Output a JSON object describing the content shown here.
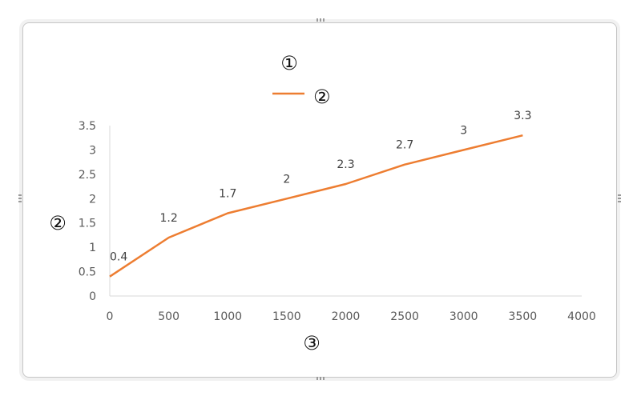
{
  "chart_data": {
    "type": "line",
    "title": "①",
    "xlabel": "③",
    "ylabel": "②",
    "legend": {
      "position": "top",
      "entries": [
        "②"
      ]
    },
    "series": [
      {
        "name": "②",
        "color": "#ED7D31",
        "x": [
          0,
          500,
          1000,
          1500,
          2000,
          2500,
          3000,
          3500
        ],
        "values": [
          0.4,
          1.2,
          1.7,
          2,
          2.3,
          2.7,
          3,
          3.3
        ],
        "data_labels": [
          "0.4",
          "1.2",
          "1.7",
          "2",
          "2.3",
          "2.7",
          "3",
          "3.3"
        ]
      }
    ],
    "x_ticks": [
      "0",
      "500",
      "1000",
      "1500",
      "2000",
      "2500",
      "3000",
      "3500",
      "4000"
    ],
    "y_ticks": [
      "0",
      "0.5",
      "1",
      "1.5",
      "2",
      "2.5",
      "3",
      "3.5"
    ],
    "xlim": [
      0,
      4000
    ],
    "ylim": [
      0,
      3.5
    ],
    "grid": false
  }
}
